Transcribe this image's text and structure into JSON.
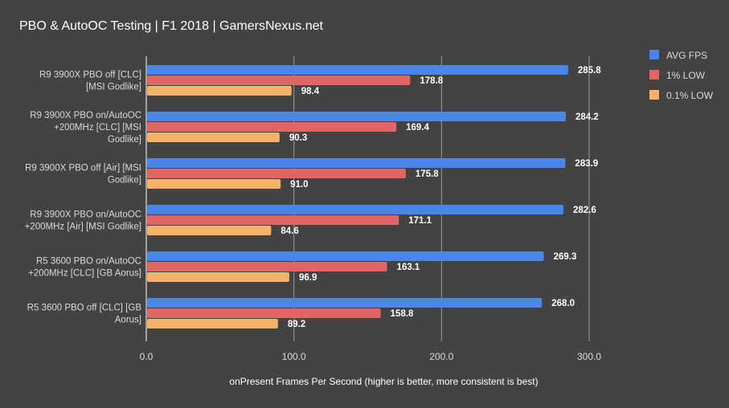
{
  "chart_data": {
    "type": "bar",
    "orientation": "horizontal",
    "title": "PBO & AutoOC Testing | F1 2018 | GamersNexus.net",
    "xlabel": "onPresent Frames Per Second (higher is better, more consistent is best)",
    "ylabel": "",
    "xlim": [
      0,
      300
    ],
    "xticks": [
      "0.0",
      "100.0",
      "200.0",
      "300.0"
    ],
    "grid": true,
    "legend_position": "right",
    "categories": [
      [
        "R9 3900X PBO off [CLC]",
        "[MSI Godlike]"
      ],
      [
        "R9 3900X PBO on/AutoOC",
        "+200MHz [CLC] [MSI",
        "Godlike]"
      ],
      [
        "R9 3900X PBO off [Air] [MSI",
        "Godlike]"
      ],
      [
        "R9 3900X PBO on/AutoOC",
        "+200MHz [Air] [MSI Godlike]"
      ],
      [
        "R5 3600 PBO on/AutoOC",
        "+200MHz [CLC] [GB Aorus]"
      ],
      [
        "R5 3600 PBO off [CLC] [GB",
        "Aorus]"
      ]
    ],
    "series": [
      {
        "name": "AVG FPS",
        "color": "#4a86e8",
        "values": [
          285.8,
          284.2,
          283.9,
          282.6,
          269.3,
          268.0
        ]
      },
      {
        "name": "1% LOW",
        "color": "#e06666",
        "values": [
          178.8,
          169.4,
          175.8,
          171.1,
          163.1,
          158.8
        ]
      },
      {
        "name": "0.1% LOW",
        "color": "#f6b26b",
        "values": [
          98.4,
          90.3,
          91.0,
          84.6,
          96.9,
          89.2
        ]
      }
    ]
  }
}
